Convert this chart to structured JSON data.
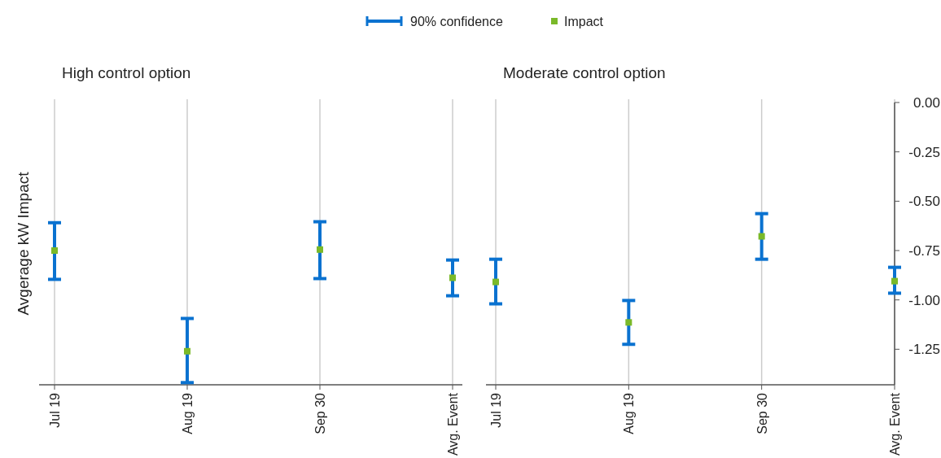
{
  "chart_data": [
    {
      "type": "scatter",
      "title": "High control option",
      "ylabel": "Avgerage kW Impact",
      "categories": [
        "Jul 19",
        "Aug 19",
        "Sep 30",
        "Avg. Event"
      ],
      "series": [
        {
          "name": "Impact",
          "color": "#7ab929",
          "values": [
            -0.75,
            -1.26,
            -0.745,
            -0.888
          ],
          "errors": [
            [
              -0.896,
              -0.609
            ],
            [
              -1.419,
              -1.094
            ],
            [
              -0.892,
              -0.604
            ],
            [
              -0.979,
              -0.798
            ]
          ]
        }
      ],
      "ylim": [
        -1.43,
        0
      ],
      "tick_labels": "x",
      "grid": "x",
      "legend": "top",
      "marker": "square",
      "annotations": [
        "90% confidence"
      ]
    },
    {
      "type": "scatter",
      "title": "Moderate control option",
      "categories": [
        "Jul 19",
        "Aug 19",
        "Sep 30",
        "Avg. Event"
      ],
      "series": [
        {
          "color": "#7ab929",
          "values": [
            -0.909,
            -1.114,
            -0.678,
            -0.905
          ],
          "errors": [
            [
              -1.02,
              -0.794
            ],
            [
              -1.225,
              -1.003
            ],
            [
              -0.794,
              -0.563
            ],
            [
              -0.966,
              -0.835
            ]
          ]
        }
      ],
      "ylim": [
        -1.43,
        0
      ],
      "yticks": [
        {
          "value": 0,
          "label": "0.00"
        },
        {
          "value": -0.25,
          "label": "-0.25"
        },
        {
          "value": -0.5,
          "label": "-0.50"
        },
        {
          "value": -0.75,
          "label": "-0.75"
        },
        {
          "value": -1,
          "label": "-1.00"
        },
        {
          "value": -1.25,
          "label": "-1.25"
        }
      ],
      "grid": "x",
      "marker": "square"
    }
  ]
}
